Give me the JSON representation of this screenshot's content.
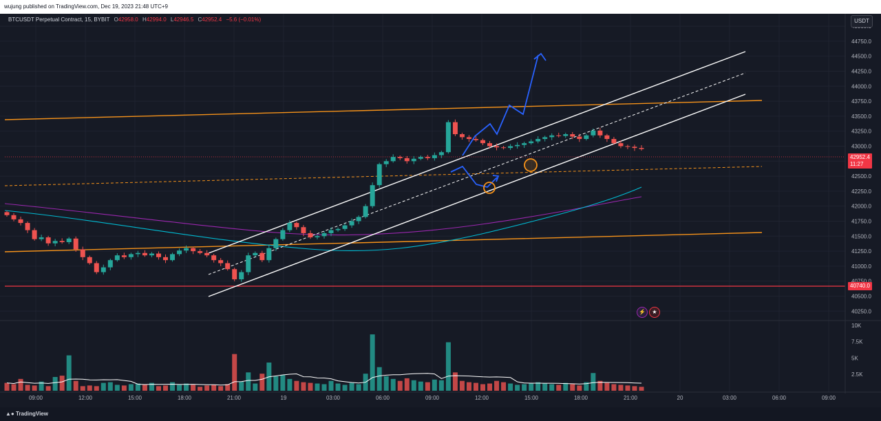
{
  "publish_note": "wujung published on TradingView.com, Dec 19, 2023 21:48 UTC+9",
  "legend": {
    "symbol": "BTCUSDT Perpetual Contract, 15, BYBIT",
    "open_label": "O",
    "open": "42958.0",
    "high_label": "H",
    "high": "42994.0",
    "low_label": "L",
    "low": "42946.5",
    "close_label": "C",
    "close": "42952.4",
    "change": "−5.6 (−0.01%)"
  },
  "currency": "USDT",
  "last_price_badge": "42952.4",
  "countdown": "11:27",
  "horizontal_line_badge": "40740.0",
  "footer_logo": "TradingView",
  "event_icons": [
    "lightning-icon",
    "us-flag-icon"
  ],
  "colors": {
    "up": "#26a69a",
    "down": "#ef5350",
    "orange": "#f7931a",
    "channel": "#ffffff",
    "blue_path": "#2962ff",
    "purple_ma": "#9c27b0",
    "teal_ma": "#00bcd4",
    "red_line": "#f23645",
    "volume_ma": "#ffffff"
  },
  "chart_data": {
    "type": "candlestick",
    "price_axis": {
      "ticks": [
        "45000.0",
        "44750.0",
        "44500.0",
        "44250.0",
        "44000.0",
        "43750.0",
        "43500.0",
        "43250.0",
        "43000.0",
        "42750.0",
        "42500.0",
        "42250.0",
        "42000.0",
        "41750.0",
        "41500.0",
        "41250.0",
        "41000.0",
        "40750.0",
        "40500.0",
        "40250.0"
      ],
      "ylim": [
        40150,
        45150
      ]
    },
    "volume_axis": {
      "ticks": [
        "10K",
        "7.5K",
        "5K",
        "2.5K"
      ],
      "ylim": [
        0,
        10500
      ]
    },
    "time_axis": [
      "09:00",
      "12:00",
      "15:00",
      "18:00",
      "21:00",
      "19",
      "03:00",
      "06:00",
      "09:00",
      "12:00",
      "15:00",
      "18:00",
      "21:00",
      "20",
      "03:00",
      "06:00",
      "09:00"
    ],
    "horizontal_line": 40740.0,
    "last_price": 42952.4,
    "closes": [
      41850,
      41780,
      41720,
      41600,
      41450,
      41480,
      41380,
      41420,
      41400,
      41460,
      41280,
      41150,
      41050,
      40900,
      40980,
      41100,
      41180,
      41150,
      41200,
      41220,
      41180,
      41210,
      41150,
      41100,
      41200,
      41260,
      41300,
      41250,
      41220,
      41180,
      41100,
      41050,
      40950,
      40780,
      40900,
      41180,
      41220,
      41100,
      41300,
      41450,
      41600,
      41720,
      41650,
      41550,
      41480,
      41500,
      41550,
      41600,
      41620,
      41680,
      41750,
      41820,
      42000,
      42350,
      42700,
      42750,
      42820,
      42800,
      42750,
      42790,
      42820,
      42800,
      42850,
      42900,
      43400,
      43200,
      43150,
      43120,
      43100,
      43050,
      43000,
      42980,
      42970,
      43000,
      43020,
      43050,
      43080,
      43120,
      43150,
      43180,
      43170,
      43200,
      43160,
      43120,
      43180,
      43260,
      43180,
      43120,
      43050,
      43000,
      42990,
      42970,
      42952
    ],
    "volumes": [
      1200,
      1000,
      1800,
      900,
      800,
      1400,
      700,
      2100,
      2300,
      5400,
      1500,
      700,
      800,
      700,
      1200,
      1300,
      900,
      800,
      1000,
      1100,
      900,
      1200,
      700,
      800,
      1300,
      900,
      1100,
      900,
      600,
      800,
      900,
      700,
      1000,
      5600,
      1400,
      2800,
      1100,
      2600,
      4300,
      2200,
      2400,
      1800,
      1500,
      1300,
      1200,
      1100,
      1000,
      1500,
      1100,
      900,
      1200,
      1000,
      2600,
      8600,
      3600,
      2200,
      1800,
      1500,
      1900,
      1600,
      1400,
      1300,
      1700,
      1600,
      7400,
      2800,
      1500,
      1300,
      1200,
      1000,
      1100,
      1500,
      1300,
      1100,
      900,
      1000,
      1100,
      1300,
      1100,
      1000,
      900,
      1200,
      1000,
      800,
      1300,
      2700,
      1500,
      1200,
      1000,
      900,
      800,
      700,
      600
    ]
  }
}
